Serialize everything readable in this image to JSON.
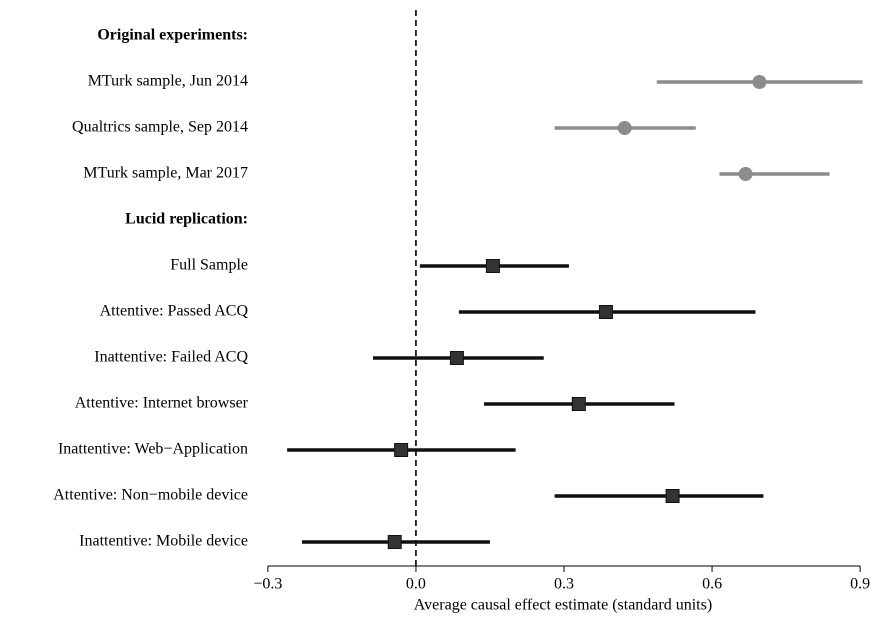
{
  "chart_data": {
    "type": "forest",
    "xlabel": "Average causal effect estimate (standard units)",
    "xlim": [
      -0.32,
      0.92
    ],
    "xticks": [
      {
        "value": -0.3,
        "label": "−0.3"
      },
      {
        "value": 0,
        "label": "0.0"
      },
      0.3,
      0.6,
      0.9
    ],
    "vline": 0,
    "series": [
      {
        "name": "Original experiments:",
        "color": "#8c8c8c",
        "marker": "circle",
        "categories": [
          "MTurk sample, Jun 2014",
          "Qualtrics sample, Sep 2014",
          "MTurk sample, Mar 2017"
        ],
        "values": [
          0.696,
          0.423,
          0.668
        ],
        "lower": [
          0.488,
          0.281,
          0.615
        ],
        "upper": [
          0.905,
          0.567,
          0.838
        ]
      },
      {
        "name": "Lucid replication:",
        "color": "#111111",
        "marker": "square",
        "categories": [
          "Full Sample",
          "Attentive: Passed ACQ",
          "Inattentive: Failed ACQ",
          "Attentive: Internet browser",
          "Inattentive: Web−Application",
          "Attentive: Non−mobile device",
          "Inattentive: Mobile device"
        ],
        "values": [
          0.156,
          0.385,
          0.083,
          0.33,
          -0.03,
          0.52,
          -0.043
        ],
        "lower": [
          0.008,
          0.087,
          -0.087,
          0.138,
          -0.261,
          0.281,
          -0.231
        ],
        "upper": [
          0.31,
          0.688,
          0.259,
          0.524,
          0.202,
          0.704,
          0.15
        ]
      }
    ]
  }
}
